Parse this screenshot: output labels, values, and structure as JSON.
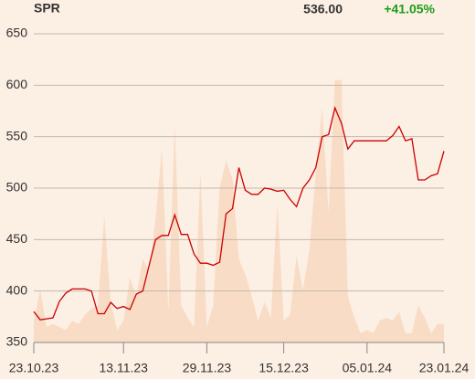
{
  "header": {
    "symbol": "SPR",
    "last_price": "536.00",
    "change": "+41.05%"
  },
  "chart_data": {
    "type": "line",
    "categories": [
      "23.10.23",
      null,
      null,
      null,
      null,
      null,
      null,
      null,
      null,
      null,
      null,
      null,
      null,
      null,
      "13.11.23",
      null,
      null,
      null,
      null,
      null,
      null,
      null,
      null,
      null,
      null,
      null,
      null,
      "29.11.23",
      null,
      null,
      null,
      null,
      null,
      null,
      null,
      null,
      null,
      null,
      null,
      "15.12.23",
      null,
      null,
      null,
      null,
      null,
      null,
      null,
      null,
      null,
      null,
      null,
      null,
      "05.01.24",
      null,
      null,
      null,
      null,
      null,
      null,
      null,
      null,
      null,
      null,
      null,
      "23.01.24"
    ],
    "series": [
      {
        "color": "#f8dcc6",
        "area": true,
        "axis": "y2",
        "values": [
          7,
          17,
          5,
          6,
          5,
          4,
          7,
          6,
          9,
          11,
          12,
          41,
          13,
          4,
          7,
          21,
          15,
          27,
          23,
          40,
          63,
          10,
          70,
          12,
          8,
          5,
          55,
          5,
          12,
          50,
          59,
          53,
          27,
          22,
          15,
          7,
          13,
          8,
          45,
          7,
          9,
          28,
          17,
          30,
          55,
          76,
          42,
          85,
          85,
          15,
          8,
          3,
          4,
          3,
          7,
          8,
          7,
          10,
          3,
          3,
          12,
          8,
          3,
          6,
          6
        ]
      },
      {
        "color": "#cc0000",
        "values": [
          380,
          372,
          373,
          374,
          390,
          398,
          402,
          402,
          402,
          400,
          378,
          378,
          389,
          383,
          385,
          382,
          397,
          400,
          425,
          450,
          454,
          454,
          474,
          455,
          455,
          436,
          427,
          427,
          425,
          428,
          475,
          480,
          520,
          498,
          494,
          494,
          500,
          499,
          497,
          498,
          489,
          482,
          500,
          508,
          520,
          550,
          552,
          578,
          563,
          538,
          546,
          546,
          546,
          546,
          546,
          546,
          551,
          560,
          546,
          548,
          508,
          508,
          512,
          514,
          536
        ]
      }
    ],
    "ylim": [
      350,
      650
    ],
    "yticks": [
      350,
      400,
      450,
      500,
      550,
      600,
      650
    ],
    "y2lim": [
      0,
      100
    ],
    "grid": true
  }
}
